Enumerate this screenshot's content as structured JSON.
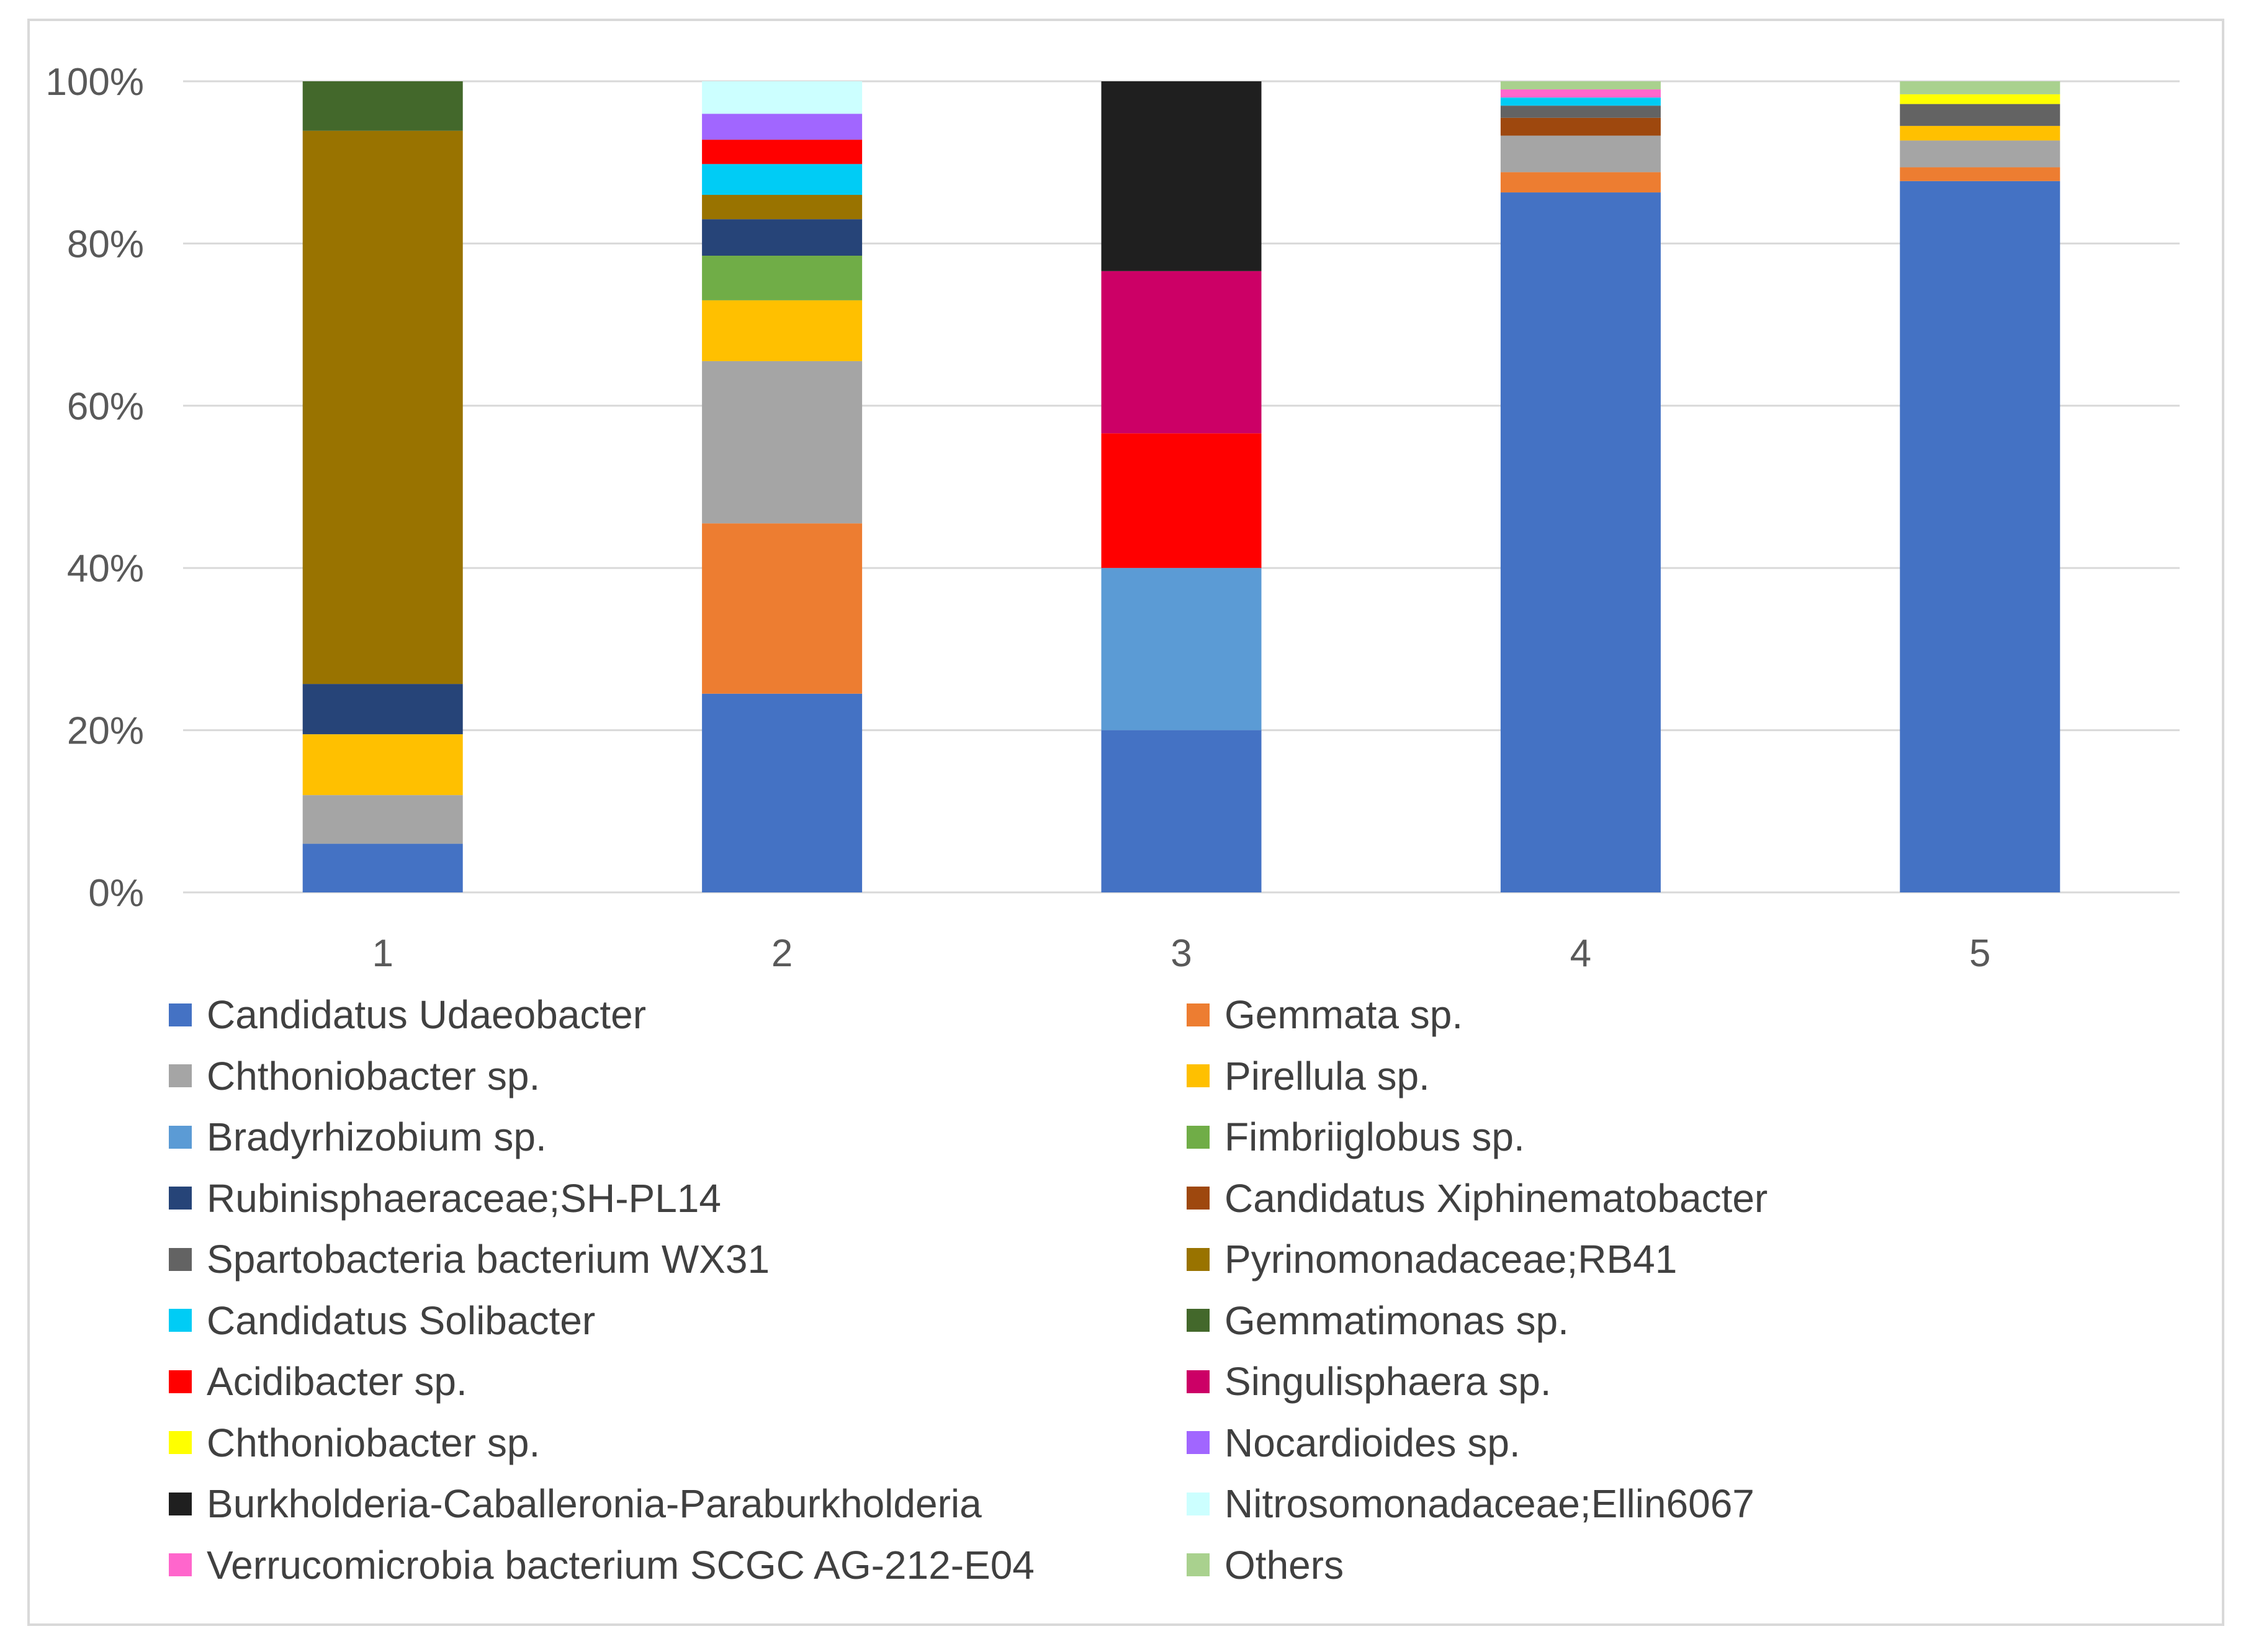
{
  "chart_data": {
    "type": "bar",
    "stacked": true,
    "percent": true,
    "title": "",
    "xlabel": "",
    "ylabel": "",
    "ylim": [
      0,
      100
    ],
    "y_ticks": [
      "0%",
      "20%",
      "40%",
      "60%",
      "80%",
      "100%"
    ],
    "grid": true,
    "legend_position": "bottom",
    "categories": [
      "1",
      "2",
      "3",
      "4",
      "5"
    ],
    "series": [
      {
        "name": "Candidatus Udaeobacter",
        "color": "#4472C4",
        "values": [
          6.0,
          24.5,
          20.0,
          86.3,
          87.7
        ]
      },
      {
        "name": "Gemmata sp.",
        "color": "#ED7D31",
        "values": [
          0,
          21.0,
          0,
          2.5,
          1.7
        ]
      },
      {
        "name": "Chthoniobacter sp.",
        "color": "#A5A5A5",
        "values": [
          6.0,
          20.0,
          0,
          4.5,
          3.3
        ]
      },
      {
        "name": "Pirellula sp.",
        "color": "#FFC000",
        "values": [
          7.5,
          7.5,
          0,
          0,
          1.8
        ]
      },
      {
        "name": "Bradyrhizobium sp.",
        "color": "#5B9BD5",
        "values": [
          0,
          0,
          20.0,
          0,
          0
        ]
      },
      {
        "name": "Fimbriiglobus sp.",
        "color": "#70AD47",
        "values": [
          0,
          5.5,
          0,
          0,
          0
        ]
      },
      {
        "name": "Rubinisphaeraceae;SH-PL14",
        "color": "#264478",
        "values": [
          6.2,
          4.5,
          0,
          0,
          0
        ]
      },
      {
        "name": "Candidatus Xiphinematobacter",
        "color": "#9E480E",
        "values": [
          0,
          0,
          0,
          2.2,
          0
        ]
      },
      {
        "name": "Spartobacteria bacterium WX31",
        "color": "#636363",
        "values": [
          0,
          0,
          0,
          1.5,
          2.7
        ]
      },
      {
        "name": "Pyrinomonadaceae;RB41",
        "color": "#997300",
        "values": [
          68.2,
          3.0,
          0,
          0,
          0
        ]
      },
      {
        "name": "Candidatus Solibacter",
        "color": "#00CCF5",
        "values": [
          0,
          3.8,
          0,
          1.0,
          0
        ]
      },
      {
        "name": "Gemmatimonas sp.",
        "color": "#43682B",
        "values": [
          6.1,
          0,
          0,
          0,
          0
        ]
      },
      {
        "name": "Acidibacter sp.",
        "color": "#FF0000",
        "values": [
          0,
          3.0,
          16.6,
          0,
          0
        ]
      },
      {
        "name": "Singulisphaera sp.",
        "color": "#CC0066",
        "values": [
          0,
          0,
          20.0,
          0,
          0
        ]
      },
      {
        "name": "Chthoniobacter sp.",
        "color": "#FFFF00",
        "values": [
          0,
          0,
          0,
          0,
          1.2
        ]
      },
      {
        "name": "Nocardioides sp.",
        "color": "#A166FF",
        "values": [
          0,
          3.2,
          0,
          0,
          0
        ]
      },
      {
        "name": "Burkholderia-Caballeronia-Paraburkholderia",
        "color": "#1F1F1F",
        "values": [
          0,
          0,
          23.4,
          0,
          0
        ]
      },
      {
        "name": "Nitrosomonadaceae;Ellin6067",
        "color": "#CCFFFF",
        "values": [
          0,
          4.0,
          0,
          0,
          0
        ]
      },
      {
        "name": "Verrucomicrobia bacterium SCGC AG-212-E04",
        "color": "#FF66CC",
        "values": [
          0,
          0,
          0,
          1.0,
          0
        ]
      },
      {
        "name": "Others",
        "color": "#A9D18E",
        "values": [
          0,
          0,
          0,
          1.0,
          1.6
        ]
      }
    ]
  },
  "colors": {
    "gridline": "#D9D9D9",
    "axis_text": "#595959",
    "frame": "#D9D9D9"
  }
}
